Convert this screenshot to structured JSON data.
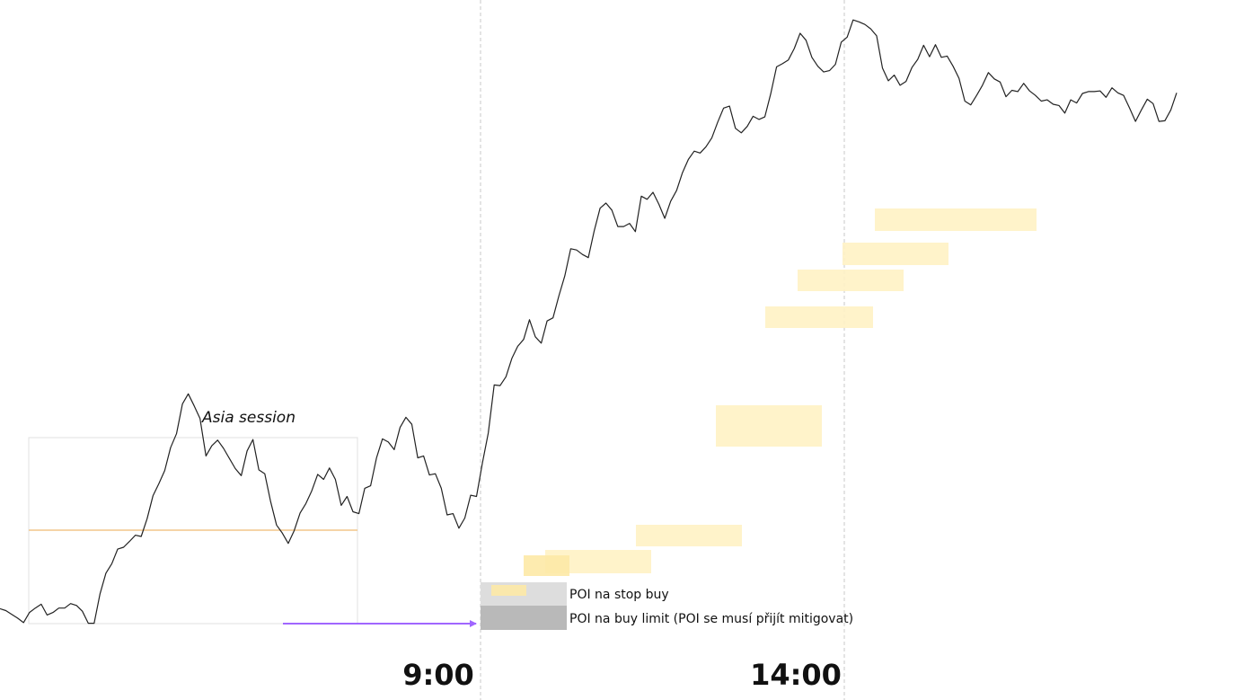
{
  "chart_data": {
    "type": "line",
    "title": "",
    "xlabel": "",
    "ylabel": "",
    "x_ticks": [
      "9:00",
      "14:00"
    ],
    "series": [
      {
        "values": [
          97.5,
          97.2,
          96.6,
          96.0,
          95.3,
          96.9,
          97.6,
          98.2,
          96.5,
          96.9,
          97.6,
          97.6,
          98.3,
          98.0,
          97.1,
          95.2,
          95.2,
          99.8,
          103.1,
          104.6,
          106.9,
          107.2,
          108.1,
          109.1,
          108.9,
          111.7,
          115.3,
          117.2,
          119.3,
          122.9,
          125.1,
          129.8,
          131.4,
          129.5,
          127.5,
          121.6,
          123.2,
          124.1,
          122.8,
          121.2,
          119.6,
          118.5,
          122.4,
          124.2,
          119.4,
          118.8,
          114.4,
          110.7,
          109.4,
          107.8,
          109.8,
          112.6,
          114.1,
          116.1,
          118.7,
          117.9,
          119.7,
          117.9,
          113.8,
          115.2,
          112.8,
          112.5,
          116.5,
          116.9,
          121.3,
          124.3,
          123.8,
          122.6,
          126.1,
          127.7,
          126.6,
          121.3,
          121.6,
          118.6,
          118.8,
          116.5,
          112.3,
          112.5,
          110.2,
          111.8,
          115.4,
          115.2,
          120.5,
          125.2,
          132.8,
          132.7,
          134.1,
          137.0,
          138.9,
          140.0,
          143.1,
          140.4,
          139.4,
          142.9,
          143.4,
          146.9,
          150.0,
          154.3,
          154.1,
          153.4,
          152.9,
          157.1,
          160.7,
          161.5,
          160.4,
          157.8,
          157.8,
          158.3,
          157.0,
          162.6,
          162.1,
          163.2,
          161.3,
          159.1,
          161.8,
          163.5,
          166.3,
          168.4,
          169.7,
          169.4,
          170.4,
          171.8,
          174.3,
          176.5,
          176.8,
          173.3,
          172.6,
          173.6,
          175.2,
          174.7,
          175.1,
          178.7,
          183.0,
          183.5,
          184.1,
          185.9,
          188.3,
          187.2,
          184.5,
          183.1,
          182.2,
          182.4,
          183.4,
          186.9,
          187.7,
          190.4,
          190.1,
          189.7,
          189.0,
          187.9,
          182.8,
          180.8,
          181.7,
          180.1,
          180.7,
          182.9,
          184.2,
          186.4,
          184.6,
          186.5,
          184.5,
          184.7,
          183.1,
          181.2,
          177.6,
          177.0,
          178.5,
          180.1,
          182.1,
          181.1,
          180.6,
          178.3,
          179.3,
          179.1,
          180.4,
          179.2,
          178.5,
          177.6,
          177.8,
          177.1,
          176.9,
          175.7,
          177.8,
          177.3,
          178.8,
          179.1,
          179.1,
          179.2,
          178.2,
          179.7,
          178.9,
          178.5,
          176.5,
          174.4,
          176.2,
          177.9,
          177.2,
          174.4,
          174.5,
          176.2,
          178.9
        ]
      }
    ],
    "annotations": {
      "asia_session": "Asia session",
      "poi_stop_buy": "POI na stop buy",
      "poi_buy_limit": "POI na buy limit (POI se musí přijít mitigovat)"
    },
    "colors": {
      "price_line": "#222222",
      "zone_fill": "#fff2c4",
      "asia_midline": "#f2c58a",
      "liquidity_arrow": "#a066ff",
      "poi_stop_buy_fill": "#dddddd",
      "poi_buy_limit_fill": "#b9b9b9",
      "session_divider": "#c8c8c8",
      "asia_box_border": "#e0e0e0"
    },
    "grid": false,
    "legend": "none"
  }
}
